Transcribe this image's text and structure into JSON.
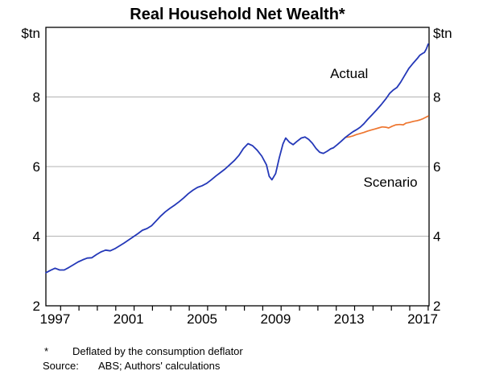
{
  "chart_data": {
    "type": "line",
    "title": "Real Household Net Wealth*",
    "unit_label": "$tn",
    "xlabel": "",
    "ylabel": "$tn",
    "xlim": [
      1996.5,
      2017.35
    ],
    "ylim": [
      2,
      10
    ],
    "grid": "horizontal",
    "y_ticks": [
      2,
      4,
      6,
      8
    ],
    "y_gridlines": [
      4,
      6,
      8
    ],
    "x_tick_labels": [
      1997,
      2001,
      2005,
      2009,
      2013,
      2017
    ],
    "x_minor_tick_years_start": 1997,
    "x_minor_tick_years_end": 2017,
    "legend_position": "inline-annotations",
    "series": [
      {
        "name": "Actual",
        "color": "#2438b8",
        "label_pos": {
          "x": 2013.0,
          "y": 8.68
        },
        "points": [
          [
            1996.5,
            2.95
          ],
          [
            1996.75,
            3.02
          ],
          [
            1997.0,
            3.08
          ],
          [
            1997.25,
            3.03
          ],
          [
            1997.5,
            3.03
          ],
          [
            1997.75,
            3.1
          ],
          [
            1998.0,
            3.18
          ],
          [
            1998.25,
            3.26
          ],
          [
            1998.5,
            3.32
          ],
          [
            1998.75,
            3.37
          ],
          [
            1999.0,
            3.38
          ],
          [
            1999.25,
            3.47
          ],
          [
            1999.5,
            3.55
          ],
          [
            1999.75,
            3.6
          ],
          [
            2000.0,
            3.58
          ],
          [
            2000.25,
            3.64
          ],
          [
            2000.5,
            3.72
          ],
          [
            2000.75,
            3.8
          ],
          [
            2001.0,
            3.89
          ],
          [
            2001.25,
            3.98
          ],
          [
            2001.5,
            4.07
          ],
          [
            2001.75,
            4.17
          ],
          [
            2002.0,
            4.22
          ],
          [
            2002.25,
            4.3
          ],
          [
            2002.5,
            4.44
          ],
          [
            2002.75,
            4.58
          ],
          [
            2003.0,
            4.7
          ],
          [
            2003.25,
            4.8
          ],
          [
            2003.5,
            4.89
          ],
          [
            2003.75,
            4.99
          ],
          [
            2004.0,
            5.1
          ],
          [
            2004.25,
            5.22
          ],
          [
            2004.5,
            5.32
          ],
          [
            2004.75,
            5.4
          ],
          [
            2005.0,
            5.45
          ],
          [
            2005.25,
            5.52
          ],
          [
            2005.5,
            5.62
          ],
          [
            2005.75,
            5.73
          ],
          [
            2006.0,
            5.83
          ],
          [
            2006.25,
            5.93
          ],
          [
            2006.5,
            6.05
          ],
          [
            2006.75,
            6.17
          ],
          [
            2007.0,
            6.32
          ],
          [
            2007.25,
            6.52
          ],
          [
            2007.5,
            6.66
          ],
          [
            2007.75,
            6.6
          ],
          [
            2008.0,
            6.47
          ],
          [
            2008.25,
            6.3
          ],
          [
            2008.5,
            6.05
          ],
          [
            2008.65,
            5.72
          ],
          [
            2008.8,
            5.62
          ],
          [
            2009.0,
            5.8
          ],
          [
            2009.2,
            6.25
          ],
          [
            2009.4,
            6.65
          ],
          [
            2009.55,
            6.82
          ],
          [
            2009.75,
            6.7
          ],
          [
            2009.95,
            6.63
          ],
          [
            2010.15,
            6.72
          ],
          [
            2010.4,
            6.82
          ],
          [
            2010.6,
            6.85
          ],
          [
            2010.8,
            6.78
          ],
          [
            2011.0,
            6.67
          ],
          [
            2011.2,
            6.52
          ],
          [
            2011.4,
            6.41
          ],
          [
            2011.6,
            6.38
          ],
          [
            2011.8,
            6.44
          ],
          [
            2012.0,
            6.51
          ],
          [
            2012.15,
            6.54
          ],
          [
            2012.35,
            6.63
          ],
          [
            2012.55,
            6.72
          ],
          [
            2012.8,
            6.84
          ],
          [
            2013.0,
            6.92
          ],
          [
            2013.2,
            7.0
          ],
          [
            2013.4,
            7.06
          ],
          [
            2013.6,
            7.13
          ],
          [
            2013.8,
            7.23
          ],
          [
            2014.0,
            7.35
          ],
          [
            2014.25,
            7.49
          ],
          [
            2014.5,
            7.63
          ],
          [
            2014.75,
            7.78
          ],
          [
            2015.0,
            7.95
          ],
          [
            2015.2,
            8.1
          ],
          [
            2015.4,
            8.2
          ],
          [
            2015.6,
            8.27
          ],
          [
            2015.8,
            8.42
          ],
          [
            2016.0,
            8.6
          ],
          [
            2016.25,
            8.82
          ],
          [
            2016.5,
            8.98
          ],
          [
            2016.7,
            9.1
          ],
          [
            2016.85,
            9.2
          ],
          [
            2017.0,
            9.25
          ],
          [
            2017.1,
            9.28
          ],
          [
            2017.2,
            9.38
          ],
          [
            2017.3,
            9.52
          ]
        ]
      },
      {
        "name": "Scenario",
        "color": "#ee7630",
        "label_pos": {
          "x": 2015.25,
          "y": 5.56
        },
        "points": [
          [
            2012.8,
            6.84
          ],
          [
            2013.0,
            6.85
          ],
          [
            2013.2,
            6.88
          ],
          [
            2013.4,
            6.92
          ],
          [
            2013.6,
            6.95
          ],
          [
            2013.8,
            6.98
          ],
          [
            2014.0,
            7.02
          ],
          [
            2014.2,
            7.05
          ],
          [
            2014.4,
            7.08
          ],
          [
            2014.6,
            7.11
          ],
          [
            2014.8,
            7.14
          ],
          [
            2015.0,
            7.13
          ],
          [
            2015.15,
            7.11
          ],
          [
            2015.35,
            7.16
          ],
          [
            2015.55,
            7.2
          ],
          [
            2015.75,
            7.21
          ],
          [
            2015.95,
            7.2
          ],
          [
            2016.1,
            7.25
          ],
          [
            2016.3,
            7.27
          ],
          [
            2016.5,
            7.3
          ],
          [
            2016.7,
            7.32
          ],
          [
            2016.85,
            7.34
          ],
          [
            2017.0,
            7.37
          ],
          [
            2017.15,
            7.41
          ],
          [
            2017.3,
            7.45
          ]
        ]
      }
    ],
    "colors": {
      "frame": "#000000",
      "gridline": "#b3b3b3",
      "tick": "#000000"
    }
  },
  "footnotes": {
    "note_marker": "*",
    "note_text": "Deflated by the consumption deflator",
    "source_label": "Source:",
    "source_text": "ABS; Authors' calculations"
  }
}
